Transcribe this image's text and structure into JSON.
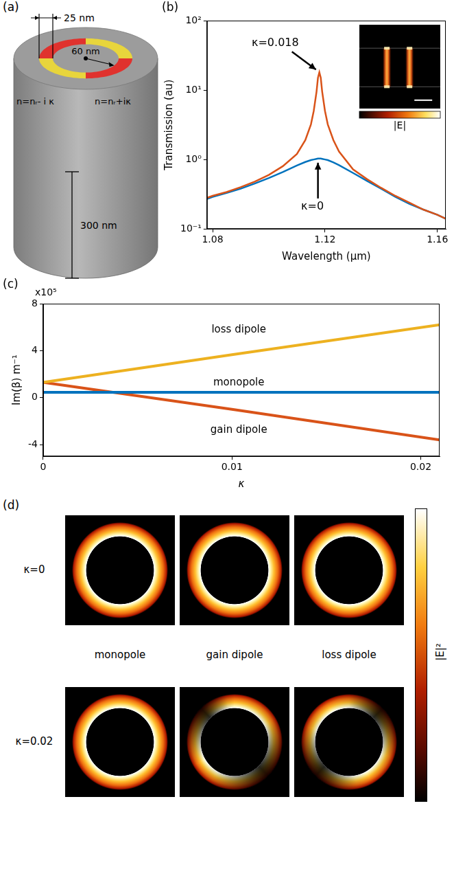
{
  "panel_a": {
    "label": "(a)",
    "ring_width": "25 nm",
    "ring_radius": "60 nm",
    "height": "300 nm",
    "left_index": "n=nᵣ- i κ",
    "right_index": "n=nᵣ+iκ"
  },
  "chart_data": [
    {
      "panel": "(b)",
      "type": "line",
      "x_label": "Wavelength (µm)",
      "y_label": "Transmission (au)",
      "log": "y",
      "grid": false,
      "x": [
        1.078,
        1.08,
        1.085,
        1.09,
        1.095,
        1.1,
        1.105,
        1.11,
        1.113,
        1.115,
        1.116,
        1.117,
        1.1175,
        1.118,
        1.1185,
        1.119,
        1.12,
        1.121,
        1.123,
        1.125,
        1.13,
        1.135,
        1.14,
        1.145,
        1.15,
        1.155,
        1.16,
        1.163
      ],
      "series": [
        {
          "name": "κ=0.018",
          "color": "#D95319",
          "values": [
            0.28,
            0.3,
            0.34,
            0.4,
            0.48,
            0.6,
            0.8,
            1.2,
            1.9,
            3.2,
            5.0,
            9.5,
            15,
            18,
            15,
            9.5,
            5.0,
            3.2,
            1.9,
            1.3,
            0.72,
            0.52,
            0.39,
            0.3,
            0.24,
            0.19,
            0.16,
            0.14
          ]
        },
        {
          "name": "κ=0",
          "color": "#0072BD",
          "values": [
            0.27,
            0.29,
            0.33,
            0.38,
            0.45,
            0.54,
            0.66,
            0.82,
            0.92,
            0.98,
            1.0,
            1.02,
            1.03,
            1.03,
            1.03,
            1.02,
            1.0,
            0.98,
            0.91,
            0.83,
            0.64,
            0.49,
            0.38,
            0.29,
            0.23,
            0.19,
            0.16,
            0.14
          ]
        }
      ],
      "xlim": [
        1.078,
        1.163
      ],
      "xticks": [
        1.08,
        1.12,
        1.16
      ],
      "ylim": [
        0.1,
        100
      ],
      "yticks": [
        {
          "value": 0.1,
          "label": "10⁻¹"
        },
        {
          "value": 1,
          "label": "10⁰"
        },
        {
          "value": 10,
          "label": "10¹"
        },
        {
          "value": 100,
          "label": "10²"
        }
      ],
      "inset_colorbar_label": "|E|"
    },
    {
      "panel": "(c)",
      "type": "line",
      "x_label": "κ",
      "y_label": "Im(β) m⁻¹",
      "y_multiplier": "x10⁵",
      "grid": false,
      "x": [
        0,
        0.01,
        0.021
      ],
      "series": [
        {
          "name": "loss dipole",
          "color": "#EDB120",
          "values": [
            1.3,
            3.65,
            6.2
          ]
        },
        {
          "name": "monopole",
          "color": "#0072BD",
          "values": [
            0.45,
            0.45,
            0.45
          ]
        },
        {
          "name": "gain dipole",
          "color": "#D95319",
          "values": [
            1.3,
            -1.0,
            -3.6
          ]
        }
      ],
      "xlim": [
        0,
        0.021
      ],
      "xticks": [
        0,
        0.01,
        0.02
      ],
      "ylim": [
        -5,
        8
      ],
      "yticks": [
        -4,
        0,
        4,
        8
      ]
    }
  ],
  "panel_d": {
    "label": "(d)",
    "rows": [
      "κ=0",
      "κ=0.02"
    ],
    "columns": [
      "monopole",
      "gain dipole",
      "loss dipole"
    ],
    "colorbar_label": "|E|²"
  }
}
